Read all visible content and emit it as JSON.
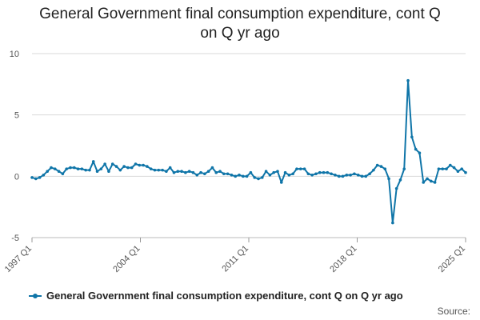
{
  "chart_data": {
    "type": "line",
    "title_lines": [
      "General Government final consumption expenditure, cont Q",
      "on Q yr ago"
    ],
    "y_ticks": [
      "10",
      "5",
      "0",
      "-5"
    ],
    "ylim": [
      -5,
      10
    ],
    "x_ticks": [
      "1997 Q1",
      "2004 Q1",
      "2011 Q1",
      "2018 Q1",
      "2025 Q1"
    ],
    "grid": "horizontal",
    "legend_position": "bottom",
    "series": [
      {
        "name": "General Government final consumption expenditure, cont Q on Q yr ago",
        "color": "#0f75a8",
        "start": "1997 Q1",
        "end": "2025 Q1",
        "values": [
          -0.1,
          -0.2,
          -0.1,
          0.1,
          0.4,
          0.7,
          0.6,
          0.4,
          0.2,
          0.6,
          0.7,
          0.7,
          0.6,
          0.6,
          0.5,
          0.5,
          1.2,
          0.4,
          0.6,
          1.0,
          0.4,
          1.0,
          0.8,
          0.5,
          0.8,
          0.7,
          0.7,
          1.0,
          0.9,
          0.9,
          0.8,
          0.6,
          0.5,
          0.5,
          0.5,
          0.4,
          0.7,
          0.3,
          0.4,
          0.4,
          0.3,
          0.4,
          0.3,
          0.1,
          0.3,
          0.2,
          0.4,
          0.7,
          0.3,
          0.4,
          0.2,
          0.2,
          0.1,
          0.0,
          0.1,
          0.0,
          0.0,
          0.3,
          -0.1,
          -0.2,
          -0.1,
          0.4,
          0.1,
          0.3,
          0.4,
          -0.5,
          0.3,
          0.1,
          0.2,
          0.6,
          0.6,
          0.6,
          0.2,
          0.1,
          0.2,
          0.3,
          0.3,
          0.3,
          0.2,
          0.1,
          0.0,
          0.0,
          0.1,
          0.1,
          0.2,
          0.1,
          0.0,
          0.0,
          0.2,
          0.5,
          0.9,
          0.8,
          0.6,
          -0.2,
          -3.8,
          -1.0,
          -0.3,
          0.6,
          7.8,
          3.2,
          2.2,
          1.9,
          -0.5,
          -0.2,
          -0.4,
          -0.5,
          0.6,
          0.6,
          0.6,
          0.9,
          0.7,
          0.4,
          0.6,
          0.3
        ]
      }
    ]
  },
  "footer": {
    "source": "Source:"
  }
}
